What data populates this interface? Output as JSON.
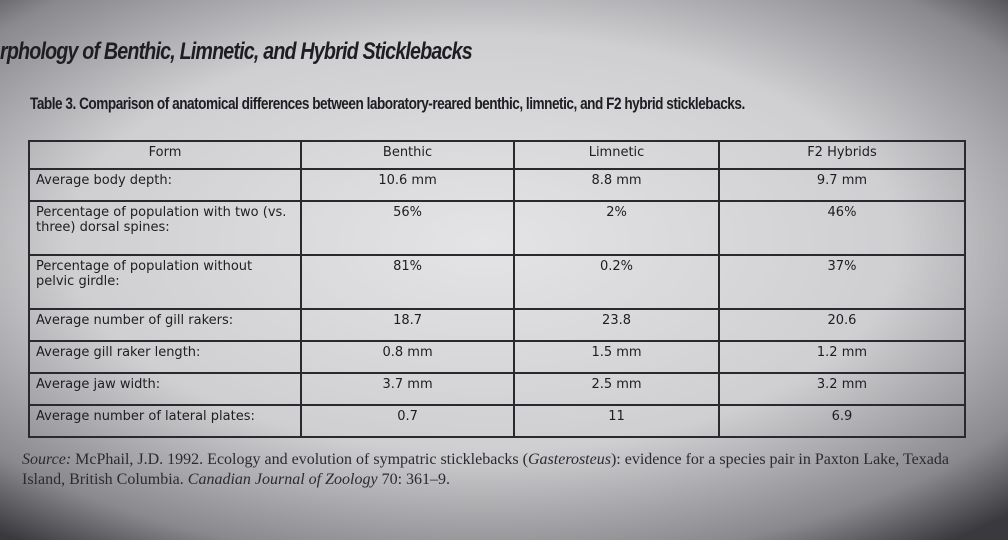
{
  "header": {
    "title": "rphology of Benthic, Limnetic, and Hybrid Sticklebacks",
    "caption": "Table 3. Comparison of anatomical differences between laboratory-reared benthic, limnetic, and F2 hybrid sticklebacks."
  },
  "table": {
    "columns": [
      "Form",
      "Benthic",
      "Limnetic",
      "F2 Hybrids"
    ],
    "rows": [
      [
        "Average body depth:",
        "10.6 mm",
        "8.8 mm",
        "9.7 mm"
      ],
      [
        "Percentage of population with two (vs. three) dorsal spines:",
        "56%",
        "2%",
        "46%"
      ],
      [
        "Percentage of population without pelvic girdle:",
        "81%",
        "0.2%",
        "37%"
      ],
      [
        "Average number of gill rakers:",
        "18.7",
        "23.8",
        "20.6"
      ],
      [
        "Average gill raker length:",
        "0.8 mm",
        "1.5 mm",
        "1.2 mm"
      ],
      [
        "Average jaw width:",
        "3.7 mm",
        "2.5 mm",
        "3.2 mm"
      ],
      [
        "Average number of lateral plates:",
        "0.7",
        "11",
        "6.9"
      ]
    ]
  },
  "source": {
    "parts": [
      {
        "text": "Source:",
        "italic": true
      },
      {
        "text": " McPhail, J.D. 1992. Ecology and evolution of sympatric sticklebacks (",
        "italic": false
      },
      {
        "text": "Gasterosteus",
        "italic": true
      },
      {
        "text": "): evidence for a species pair in Paxton Lake, Texada Island, British Columbia. ",
        "italic": false
      },
      {
        "text": "Canadian Journal of Zoology",
        "italic": true
      },
      {
        "text": " 70: 361–9.",
        "italic": false
      }
    ]
  }
}
